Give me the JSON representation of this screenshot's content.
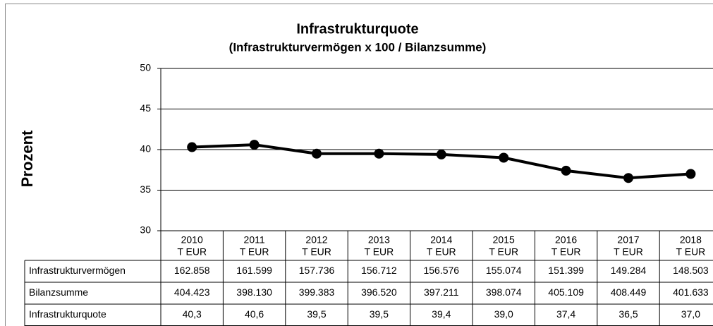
{
  "chart_data": {
    "type": "line",
    "title": "Infrastrukturquote",
    "subtitle": "(Infrastrukturvermögen x 100 / Bilanzsumme)",
    "y_label": "Prozent",
    "categories": [
      "2010",
      "2011",
      "2012",
      "2013",
      "2014",
      "2015",
      "2016",
      "2017",
      "2018"
    ],
    "category_unit": "T EUR",
    "series": [
      {
        "name": "Infrastrukturquote",
        "color": "#000000",
        "values": [
          40.3,
          40.6,
          39.5,
          39.5,
          39.4,
          39.0,
          37.4,
          36.5,
          37.0
        ],
        "value_labels": [
          "40,3",
          "40,6",
          "39,5",
          "39,5",
          "39,4",
          "39,0",
          "37,4",
          "36,5",
          "37,0"
        ]
      }
    ],
    "table_rows": [
      {
        "name": "Infrastrukturvermögen",
        "values": [
          "162.858",
          "161.599",
          "157.736",
          "156.712",
          "156.576",
          "155.074",
          "151.399",
          "149.284",
          "148.503"
        ]
      },
      {
        "name": "Bilanzsumme",
        "values": [
          "404.423",
          "398.130",
          "399.383",
          "396.520",
          "397.211",
          "398.074",
          "405.109",
          "408.449",
          "401.633"
        ]
      }
    ],
    "ylim": [
      30,
      50
    ],
    "yticks": [
      30,
      35,
      40,
      45,
      50
    ],
    "grid": true
  }
}
